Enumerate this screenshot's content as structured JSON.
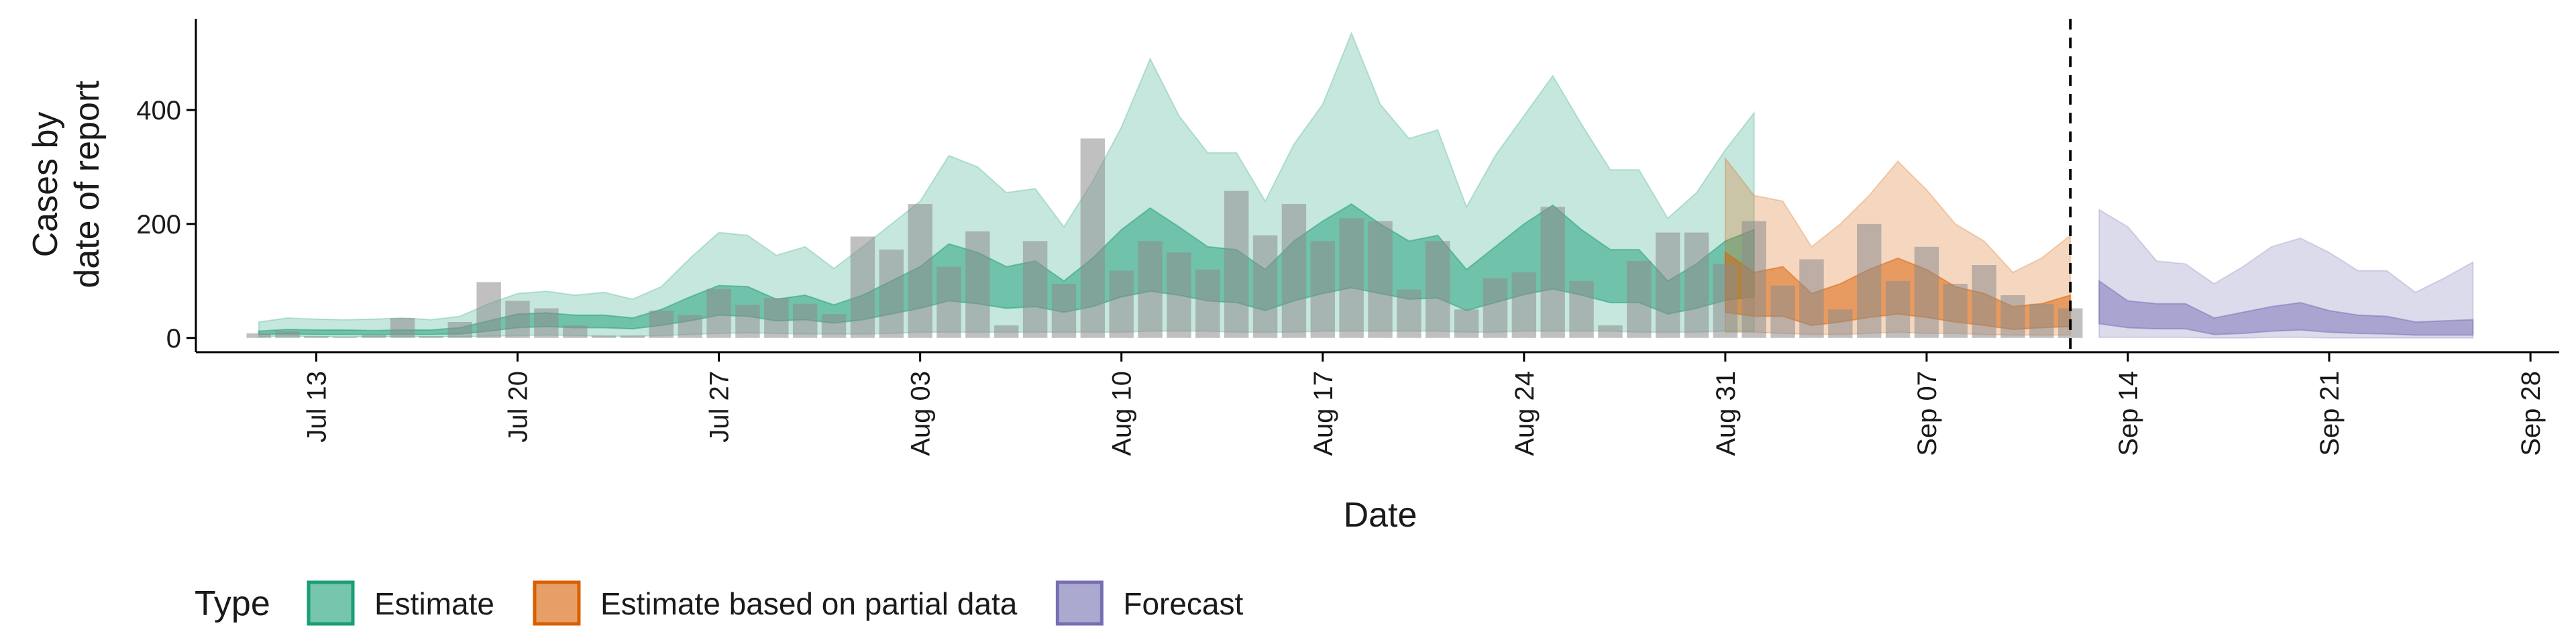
{
  "chart_data": {
    "type": "area",
    "xlabel": "Date",
    "ylabel_lines": [
      "Cases by",
      "date of report"
    ],
    "y_ticks": [
      0,
      200,
      400
    ],
    "ylim": [
      -25,
      560
    ],
    "xlim": [
      "2020-07-09",
      "2020-09-29"
    ],
    "x_ticks": [
      {
        "date": "2020-07-13",
        "label": "Jul 13"
      },
      {
        "date": "2020-07-20",
        "label": "Jul 20"
      },
      {
        "date": "2020-07-27",
        "label": "Jul 27"
      },
      {
        "date": "2020-08-03",
        "label": "Aug 03"
      },
      {
        "date": "2020-08-10",
        "label": "Aug 10"
      },
      {
        "date": "2020-08-17",
        "label": "Aug 17"
      },
      {
        "date": "2020-08-24",
        "label": "Aug 24"
      },
      {
        "date": "2020-08-31",
        "label": "Aug 31"
      },
      {
        "date": "2020-09-07",
        "label": "Sep 07"
      },
      {
        "date": "2020-09-14",
        "label": "Sep 14"
      },
      {
        "date": "2020-09-21",
        "label": "Sep 21"
      },
      {
        "date": "2020-09-28",
        "label": "Sep 28"
      }
    ],
    "forecast_line_date": "2020-09-12",
    "grid": false,
    "legend_position": "bottom-left",
    "legend": {
      "title": "Type",
      "items": [
        {
          "label": "Estimate",
          "color": "#1b9e77"
        },
        {
          "label": "Estimate based on partial data",
          "color": "#d95f02"
        },
        {
          "label": "Forecast",
          "color": "#7570b3"
        }
      ]
    },
    "bars": {
      "start": "2020-07-11",
      "color": "#8c8c8c",
      "values": [
        8,
        12,
        3,
        2,
        5,
        35,
        3,
        28,
        98,
        65,
        52,
        22,
        4,
        4,
        48,
        40,
        86,
        58,
        70,
        60,
        42,
        178,
        155,
        235,
        125,
        187,
        22,
        170,
        95,
        350,
        118,
        170,
        150,
        120,
        258,
        180,
        235,
        170,
        210,
        205,
        85,
        170,
        50,
        105,
        115,
        230,
        100,
        22,
        135,
        185,
        185,
        130,
        205,
        92,
        138,
        50,
        200,
        100,
        160,
        95,
        128,
        75,
        60,
        52
      ]
    },
    "series": [
      {
        "name": "Estimate",
        "color": "#1b9e77",
        "start": "2020-07-11",
        "outer_upper": [
          28,
          35,
          33,
          32,
          33,
          35,
          32,
          38,
          60,
          78,
          82,
          75,
          80,
          68,
          90,
          140,
          185,
          180,
          145,
          160,
          122,
          160,
          200,
          240,
          320,
          300,
          255,
          262,
          195,
          275,
          370,
          490,
          390,
          325,
          325,
          240,
          340,
          410,
          535,
          410,
          350,
          365,
          230,
          320,
          390,
          460,
          375,
          295,
          295,
          210,
          255,
          330,
          395
        ],
        "outer_lower": [
          2,
          3,
          2,
          2,
          2,
          2,
          2,
          2,
          3,
          4,
          5,
          4,
          3,
          3,
          4,
          6,
          8,
          9,
          8,
          7,
          7,
          7,
          8,
          10,
          10,
          10,
          10,
          10,
          10,
          10,
          10,
          12,
          12,
          12,
          10,
          10,
          10,
          12,
          12,
          12,
          12,
          12,
          10,
          10,
          12,
          12,
          12,
          12,
          10,
          10,
          10,
          12,
          12
        ],
        "inner_upper": [
          12,
          15,
          14,
          14,
          13,
          14,
          14,
          18,
          30,
          42,
          44,
          40,
          40,
          35,
          50,
          72,
          92,
          90,
          68,
          75,
          58,
          75,
          100,
          125,
          165,
          150,
          125,
          135,
          100,
          140,
          190,
          228,
          195,
          160,
          155,
          120,
          170,
          205,
          235,
          200,
          170,
          180,
          120,
          160,
          200,
          233,
          190,
          155,
          155,
          100,
          130,
          170,
          190
        ],
        "inner_lower": [
          6,
          7,
          6,
          6,
          6,
          6,
          6,
          7,
          12,
          18,
          20,
          18,
          18,
          16,
          22,
          30,
          40,
          38,
          30,
          32,
          26,
          32,
          42,
          52,
          65,
          60,
          52,
          55,
          45,
          55,
          72,
          82,
          75,
          65,
          62,
          48,
          65,
          78,
          88,
          78,
          68,
          70,
          48,
          62,
          76,
          86,
          75,
          62,
          62,
          42,
          52,
          66,
          72
        ]
      },
      {
        "name": "Estimate based on partial data",
        "color": "#d95f02",
        "start": "2020-08-31",
        "outer_upper": [
          315,
          250,
          240,
          160,
          200,
          250,
          310,
          260,
          200,
          170,
          115,
          140,
          180
        ],
        "outer_lower": [
          10,
          10,
          8,
          6,
          6,
          8,
          10,
          8,
          8,
          6,
          5,
          5,
          5
        ],
        "inner_upper": [
          150,
          115,
          125,
          78,
          95,
          120,
          140,
          120,
          90,
          78,
          55,
          60,
          75
        ],
        "inner_lower": [
          45,
          38,
          38,
          22,
          28,
          36,
          42,
          36,
          28,
          22,
          15,
          18,
          20
        ]
      },
      {
        "name": "Forecast",
        "color": "#7570b3",
        "start": "2020-09-13",
        "outer_upper": [
          225,
          195,
          135,
          130,
          95,
          125,
          160,
          175,
          150,
          118,
          118,
          80,
          105,
          133
        ],
        "outer_lower": [
          1,
          1,
          1,
          1,
          0,
          0,
          1,
          1,
          0,
          0,
          0,
          0,
          0,
          0
        ],
        "inner_upper": [
          100,
          65,
          60,
          60,
          35,
          45,
          55,
          62,
          48,
          40,
          38,
          28,
          30,
          32
        ],
        "inner_lower": [
          25,
          18,
          16,
          16,
          6,
          8,
          12,
          14,
          10,
          8,
          7,
          5,
          5,
          5
        ]
      }
    ]
  }
}
